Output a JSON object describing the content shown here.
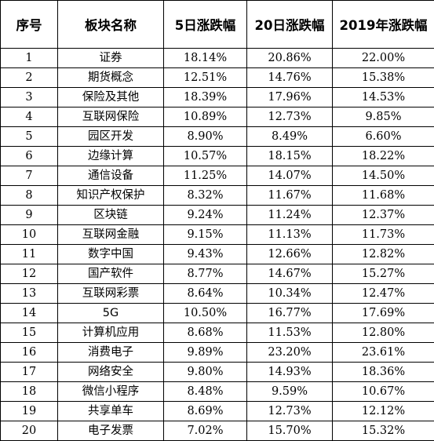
{
  "table": {
    "headers": [
      "序号",
      "板块名称",
      "5日涨跌幅",
      "20日涨跌幅",
      "2019年涨跌幅"
    ],
    "rows": [
      [
        "1",
        "证券",
        "18.14%",
        "20.86%",
        "22.00%"
      ],
      [
        "2",
        "期货概念",
        "12.51%",
        "14.76%",
        "15.38%"
      ],
      [
        "3",
        "保险及其他",
        "18.39%",
        "17.96%",
        "14.53%"
      ],
      [
        "4",
        "互联网保险",
        "10.89%",
        "12.73%",
        "9.85%"
      ],
      [
        "5",
        "园区开发",
        "8.90%",
        "8.49%",
        "6.60%"
      ],
      [
        "6",
        "边缘计算",
        "10.57%",
        "18.15%",
        "18.22%"
      ],
      [
        "7",
        "通信设备",
        "11.25%",
        "14.07%",
        "14.50%"
      ],
      [
        "8",
        "知识产权保护",
        "8.32%",
        "11.67%",
        "11.68%"
      ],
      [
        "9",
        "区块链",
        "9.24%",
        "11.24%",
        "12.37%"
      ],
      [
        "10",
        "互联网金融",
        "9.15%",
        "11.13%",
        "11.73%"
      ],
      [
        "11",
        "数字中国",
        "9.43%",
        "12.66%",
        "12.82%"
      ],
      [
        "12",
        "国产软件",
        "8.77%",
        "14.67%",
        "15.27%"
      ],
      [
        "13",
        "互联网彩票",
        "8.64%",
        "10.34%",
        "12.47%"
      ],
      [
        "14",
        "5G",
        "10.50%",
        "16.77%",
        "17.69%"
      ],
      [
        "15",
        "计算机应用",
        "8.68%",
        "11.53%",
        "12.80%"
      ],
      [
        "16",
        "消费电子",
        "9.89%",
        "23.20%",
        "23.61%"
      ],
      [
        "17",
        "网络安全",
        "9.80%",
        "14.93%",
        "18.36%"
      ],
      [
        "18",
        "微信小程序",
        "8.48%",
        "9.59%",
        "10.67%"
      ],
      [
        "19",
        "共享单车",
        "8.69%",
        "12.73%",
        "12.12%"
      ],
      [
        "20",
        "电子发票",
        "7.02%",
        "15.70%",
        "15.32%"
      ]
    ]
  }
}
